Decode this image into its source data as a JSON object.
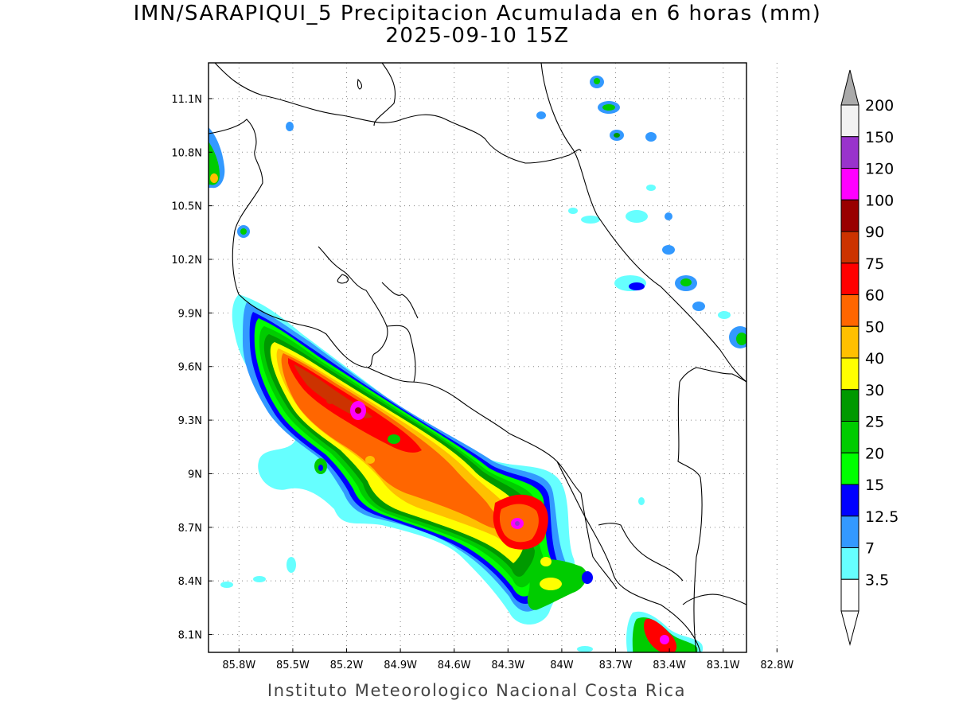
{
  "header": {
    "title": "IMN/SARAPIQUI_5 Precipitacion Acumulada en 6 horas (mm)",
    "subtitle": "2025-09-10 15Z"
  },
  "footer": {
    "credit": "Instituto Meteorologico Nacional Costa Rica"
  },
  "map": {
    "lon_labels": [
      "85.8W",
      "85.5W",
      "85.2W",
      "84.9W",
      "84.6W",
      "84.3W",
      "84W",
      "83.7W",
      "83.4W",
      "83.1W",
      "82.8W"
    ],
    "lat_labels": [
      "11.1N",
      "10.8N",
      "10.5N",
      "10.2N",
      "9.9N",
      "9.6N",
      "9.3N",
      "9N",
      "8.7N",
      "8.4N",
      "8.1N"
    ],
    "lon_range": [
      -85.97,
      -82.97
    ],
    "lat_range": [
      8.0,
      11.3
    ],
    "grid": true
  },
  "legend": {
    "labels": [
      "200",
      "150",
      "120",
      "100",
      "90",
      "75",
      "60",
      "50",
      "40",
      "30",
      "25",
      "20",
      "15",
      "12.5",
      "7",
      "3.5"
    ],
    "colors": [
      "#f2f2f2",
      "#9933cc",
      "#ff00ff",
      "#990000",
      "#cc3300",
      "#ff0000",
      "#ff6600",
      "#ffc000",
      "#ffff00",
      "#009900",
      "#00cc00",
      "#00ff00",
      "#0000ff",
      "#3399ff",
      "#66ffff",
      "#ffffff"
    ],
    "over_color": "#aaaaaa",
    "under_color": "#ffffff"
  }
}
